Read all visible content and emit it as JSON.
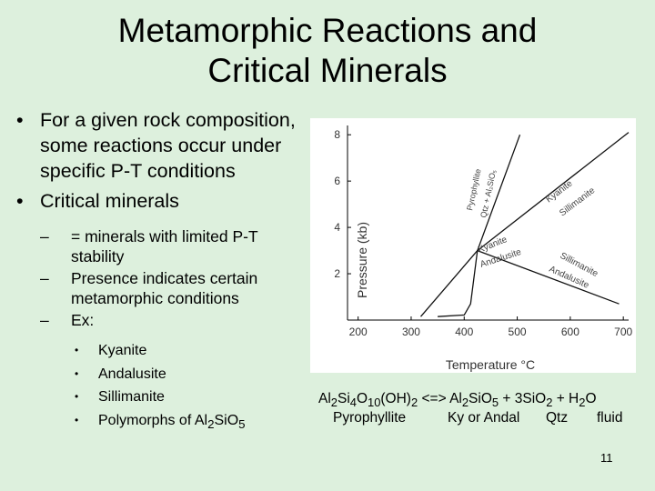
{
  "slide": {
    "title_line1": "Metamorphic Reactions and",
    "title_line2": "Critical Minerals",
    "number": "11"
  },
  "bullets": {
    "item1": "For a given rock composition, some reactions occur under specific P-T conditions",
    "item2": "Critical minerals",
    "sub1": "= minerals with limited P-T stability",
    "sub2": "Presence indicates certain metamorphic conditions",
    "sub3": "Ex:",
    "examples": [
      "Kyanite",
      "Andalusite",
      "Sillimanite"
    ],
    "example4_prefix": "Polymorphs of Al",
    "example4_sub1": "2",
    "example4_mid": "SiO",
    "example4_sub2": "5"
  },
  "equation": {
    "r1": "Al",
    "r1s": "2",
    "r2": "Si",
    "r2s": "4",
    "r3": "O",
    "r3s": "10",
    "r4": "(OH)",
    "r4s": "2",
    "arrow": " <=> Al",
    "p1s": "2",
    "p2": "SiO",
    "p2s": "5",
    "p3": " + 3SiO",
    "p3s": "2",
    "p4": " + H",
    "p4s": "2",
    "p5": "O",
    "label_pyrophyllite": "Pyrophyllite",
    "label_ky_andal": "Ky or Andal",
    "label_qtz": "Qtz",
    "label_fluid": "fluid"
  },
  "chart_data": {
    "type": "line",
    "xlabel": "Temperature °C",
    "ylabel": "Pressure (kb)",
    "xlim": [
      180,
      710
    ],
    "ylim": [
      0,
      8.4
    ],
    "x_ticks": [
      "200",
      "300",
      "400",
      "500",
      "600",
      "700"
    ],
    "y_ticks": [
      "2",
      "4",
      "6",
      "8"
    ],
    "series": [
      {
        "label": "Pyrophyllite / Qtz + Al2SiO5",
        "points": [
          [
            350,
            0.15
          ],
          [
            400,
            0.22
          ],
          [
            412,
            0.7
          ],
          [
            425,
            3.0
          ],
          [
            505,
            8.0
          ]
        ]
      },
      {
        "label": "Kyanite / Andalusite",
        "points": [
          [
            425,
            3.0
          ],
          [
            318,
            0.15
          ]
        ]
      },
      {
        "label": "Kyanite / Sillimanite",
        "points": [
          [
            425,
            3.0
          ],
          [
            710,
            8.1
          ]
        ]
      },
      {
        "label": "Andalusite / Sillimanite",
        "points": [
          [
            425,
            3.0
          ],
          [
            692,
            0.7
          ]
        ]
      }
    ],
    "labels": {
      "pyrophyllite": "Pyrophyllite",
      "qtz_al2sio5": "Qtz + Al₂SiO₅",
      "kyanite": "Kyanite",
      "sillimanite": "Sillimanite",
      "andalusite": "Andalusite"
    }
  }
}
